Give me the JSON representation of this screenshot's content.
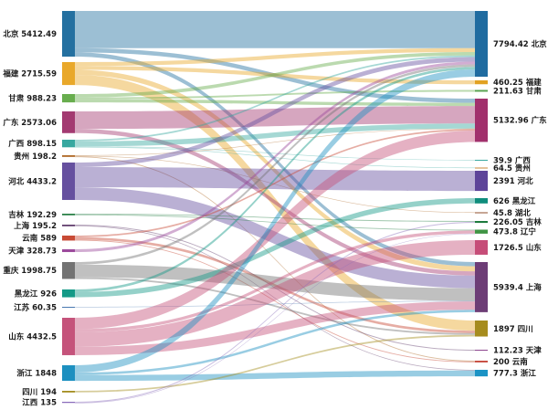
{
  "chart_data": {
    "type": "sankey",
    "title": "",
    "legend": "none",
    "background": "#ffffff",
    "label_color": "#1a1a1a",
    "left_label_format": "{name} {value}",
    "right_label_format": "{value} {name}",
    "left_nodes": [
      {
        "name": "北京",
        "value": 5412.49,
        "color": "#2470a0"
      },
      {
        "name": "福建",
        "value": 2715.59,
        "color": "#e9a82a"
      },
      {
        "name": "甘肃",
        "value": 988.23,
        "color": "#68ad4e"
      },
      {
        "name": "广东",
        "value": 2573.06,
        "color": "#a33a71"
      },
      {
        "name": "广西",
        "value": 898.15,
        "color": "#38a8a0"
      },
      {
        "name": "贵州",
        "value": 198.2,
        "color": "#b06a28"
      },
      {
        "name": "河北",
        "value": 4433.2,
        "color": "#66509f"
      },
      {
        "name": "吉林",
        "value": 192.29,
        "color": "#2a8047"
      },
      {
        "name": "上海",
        "value": 195.2,
        "color": "#63406f"
      },
      {
        "name": "云南",
        "value": 589,
        "color": "#c84a35"
      },
      {
        "name": "天津",
        "value": 328.73,
        "color": "#9c4a9c"
      },
      {
        "name": "重庆",
        "value": 1998.75,
        "color": "#737373"
      },
      {
        "name": "黑龙江",
        "value": 926,
        "color": "#149a87"
      },
      {
        "name": "江苏",
        "value": 60.35,
        "color": "#4878b0"
      },
      {
        "name": "山东",
        "value": 4432.5,
        "color": "#c5537b"
      },
      {
        "name": "浙江",
        "value": 1848,
        "color": "#1d90c0"
      },
      {
        "name": "四川",
        "value": 194,
        "color": "#a38d1e"
      },
      {
        "name": "江西",
        "value": 135,
        "color": "#8a6cbb"
      }
    ],
    "right_nodes": [
      {
        "name": "北京",
        "value": 7794.42,
        "color": "#1f6ba0"
      },
      {
        "name": "福建",
        "value": 460.25,
        "color": "#e2a223"
      },
      {
        "name": "甘肃",
        "value": 211.63,
        "color": "#57a14f"
      },
      {
        "name": "广东",
        "value": 5132.96,
        "color": "#a1306c"
      },
      {
        "name": "广西",
        "value": 39.9,
        "color": "#38a8a0"
      },
      {
        "name": "贵州",
        "value": 64.5,
        "color": "#c8873a"
      },
      {
        "name": "河北",
        "value": 2391,
        "color": "#5d4499"
      },
      {
        "name": "黑龙江",
        "value": 626,
        "color": "#0f8d7c"
      },
      {
        "name": "湖北",
        "value": 45.8,
        "color": "#8d4c2a"
      },
      {
        "name": "吉林",
        "value": 226.05,
        "color": "#1e7a3d"
      },
      {
        "name": "辽宁",
        "value": 473.8,
        "color": "#3f9444"
      },
      {
        "name": "山东",
        "value": 1726.5,
        "color": "#c64d78"
      },
      {
        "name": "上海",
        "value": 5939.4,
        "color": "#6d3d76"
      },
      {
        "name": "四川",
        "value": 1897,
        "color": "#a68c1e"
      },
      {
        "name": "天津",
        "value": 112.23,
        "color": "#8f4890"
      },
      {
        "name": "云南",
        "value": 200,
        "color": "#c54639"
      },
      {
        "name": "浙江",
        "value": 777.3,
        "color": "#1b93c5"
      }
    ],
    "links": [
      {
        "source": "北京",
        "target": "北京",
        "value": 4412.49
      },
      {
        "source": "北京",
        "target": "广东",
        "value": 500
      },
      {
        "source": "北京",
        "target": "上海",
        "value": 500
      },
      {
        "source": "福建",
        "target": "北京",
        "value": 455.34
      },
      {
        "source": "福建",
        "target": "福建",
        "value": 460.25
      },
      {
        "source": "福建",
        "target": "上海",
        "value": 600
      },
      {
        "source": "福建",
        "target": "四川",
        "value": 1200
      },
      {
        "source": "甘肃",
        "target": "北京",
        "value": 400
      },
      {
        "source": "甘肃",
        "target": "甘肃",
        "value": 211.63
      },
      {
        "source": "甘肃",
        "target": "广东",
        "value": 376.6
      },
      {
        "source": "广东",
        "target": "广东",
        "value": 2073.06
      },
      {
        "source": "广东",
        "target": "上海",
        "value": 500
      },
      {
        "source": "广西",
        "target": "北京",
        "value": 193.75
      },
      {
        "source": "广西",
        "target": "广东",
        "value": 600
      },
      {
        "source": "广西",
        "target": "广西",
        "value": 39.9
      },
      {
        "source": "广西",
        "target": "贵州",
        "value": 64.5
      },
      {
        "source": "贵州",
        "target": "广东",
        "value": 52.4
      },
      {
        "source": "贵州",
        "target": "湖北",
        "value": 45.8
      },
      {
        "source": "贵州",
        "target": "云南",
        "value": 100
      },
      {
        "source": "河北",
        "target": "北京",
        "value": 542.2
      },
      {
        "source": "河北",
        "target": "河北",
        "value": 2391
      },
      {
        "source": "河北",
        "target": "上海",
        "value": 1500
      },
      {
        "source": "吉林",
        "target": "吉林",
        "value": 100
      },
      {
        "source": "吉林",
        "target": "辽宁",
        "value": 92.29
      },
      {
        "source": "上海",
        "target": "天津",
        "value": 112.23
      },
      {
        "source": "上海",
        "target": "浙江",
        "value": 82.97
      },
      {
        "source": "云南",
        "target": "广东",
        "value": 189
      },
      {
        "source": "云南",
        "target": "云南",
        "value": 100
      },
      {
        "source": "云南",
        "target": "四川",
        "value": 300
      },
      {
        "source": "天津",
        "target": "北京",
        "value": 328.73
      },
      {
        "source": "重庆",
        "target": "北京",
        "value": 295.75
      },
      {
        "source": "重庆",
        "target": "上海",
        "value": 1500
      },
      {
        "source": "重庆",
        "target": "四川",
        "value": 203
      },
      {
        "source": "黑龙江",
        "target": "北京",
        "value": 300
      },
      {
        "source": "黑龙江",
        "target": "黑龙江",
        "value": 626
      },
      {
        "source": "江苏",
        "target": "上海",
        "value": 60.35
      },
      {
        "source": "山东",
        "target": "广东",
        "value": 1341.9
      },
      {
        "source": "山东",
        "target": "辽宁",
        "value": 372.56
      },
      {
        "source": "山东",
        "target": "山东",
        "value": 1726.5
      },
      {
        "source": "山东",
        "target": "上海",
        "value": 991.54
      },
      {
        "source": "浙江",
        "target": "北京",
        "value": 866.16
      },
      {
        "source": "浙江",
        "target": "上海",
        "value": 287.51
      },
      {
        "source": "浙江",
        "target": "浙江",
        "value": 694.33
      },
      {
        "source": "四川",
        "target": "四川",
        "value": 194
      },
      {
        "source": "江西",
        "target": "吉林",
        "value": 126.05
      },
      {
        "source": "江西",
        "target": "辽宁",
        "value": 8.95
      }
    ]
  }
}
